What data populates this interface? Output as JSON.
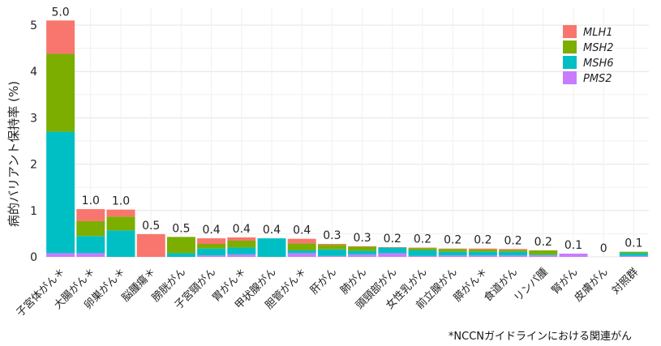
{
  "chart_data": {
    "type": "bar",
    "stacked": true,
    "ylabel": "病的バリアント保持率 (%)",
    "xlabel": "",
    "ylim": [
      0,
      5.2
    ],
    "yticks": [
      0,
      1,
      2,
      3,
      4,
      5
    ],
    "grid": true,
    "legend_position": "top-right",
    "categories": [
      "子宮体がん＊",
      "大腸がん＊",
      "卵巣がん＊",
      "脳腫瘍＊",
      "膀胱がん",
      "子宮頸がん",
      "胃がん＊",
      "甲状腺がん",
      "胆管がん＊",
      "肝がん",
      "肺がん",
      "頭頸部がん",
      "女性乳がん",
      "前立腺がん",
      "膵がん＊",
      "食道がん",
      "リンパ腫",
      "腎がん",
      "皮膚がん",
      "対照群"
    ],
    "totals": [
      "5.0",
      "1.0",
      "1.0",
      "0.5",
      "0.5",
      "0.4",
      "0.4",
      "0.4",
      "0.4",
      "0.3",
      "0.3",
      "0.2",
      "0.2",
      "0.2",
      "0.2",
      "0.2",
      "0.2",
      "0.1",
      "0",
      "0.1"
    ],
    "series": [
      {
        "name": "PMS2",
        "color": "#C77CFF",
        "values": [
          0.08,
          0.08,
          0,
          0,
          0,
          0.03,
          0.05,
          0,
          0.08,
          0.02,
          0.05,
          0.08,
          0.02,
          0.03,
          0.03,
          0.03,
          0.03,
          0.07,
          0,
          0.02
        ]
      },
      {
        "name": "MSH6",
        "color": "#00BFC4",
        "values": [
          2.62,
          0.37,
          0.57,
          0,
          0.08,
          0.15,
          0.15,
          0.4,
          0.06,
          0.14,
          0.08,
          0.12,
          0.12,
          0.08,
          0.08,
          0.08,
          0.02,
          0,
          0,
          0.06
        ]
      },
      {
        "name": "MSH2",
        "color": "#7CAE00",
        "values": [
          1.68,
          0.32,
          0.3,
          0,
          0.35,
          0.1,
          0.15,
          0,
          0.15,
          0.1,
          0.09,
          0,
          0.05,
          0.06,
          0.05,
          0.04,
          0.09,
          0,
          0,
          0.03
        ]
      },
      {
        "name": "MLH1",
        "color": "#F8766D",
        "values": [
          0.72,
          0.26,
          0.15,
          0.49,
          0,
          0.12,
          0.07,
          0,
          0.1,
          0.02,
          0.01,
          0.01,
          0.01,
          0.01,
          0.02,
          0.02,
          0,
          0,
          0,
          0
        ]
      }
    ],
    "legend_order": [
      "MLH1",
      "MSH2",
      "MSH6",
      "PMS2"
    ]
  },
  "footnote": "*NCCNガイドラインにおける関連がん"
}
